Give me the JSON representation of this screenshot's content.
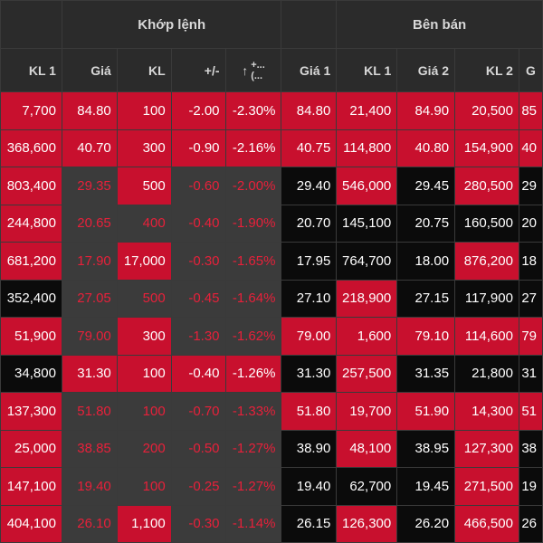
{
  "header": {
    "group_match": "Khớp lệnh",
    "group_sell": "Bên bán",
    "col_kl1_left": "KL 1",
    "col_price": "Giá",
    "col_vol": "KL",
    "col_change": "+/-",
    "col_pct_arrow": "↑",
    "col_pct_top": "+...",
    "col_pct_bottom": "(...",
    "col_sell_price1": "Giá 1",
    "col_sell_vol1": "KL 1",
    "col_sell_price2": "Giá 2",
    "col_sell_vol2": "KL 2",
    "col_partial": "G"
  },
  "colors": {
    "red_bg": "#c8102e",
    "dark_bg": "#3b3b3b",
    "black_bg": "#0b0b0b",
    "red_text": "#e8203a",
    "white_text": "#ffffff"
  },
  "rows": [
    {
      "kl1": "7,700",
      "price": "84.80",
      "vol": "100",
      "change": "-2.00",
      "pct": "-2.30%",
      "sp1": "84.80",
      "sv1": "21,400",
      "sp2": "84.90",
      "sv2": "20,500",
      "sp3": "85"
    },
    {
      "kl1": "368,600",
      "price": "40.70",
      "vol": "300",
      "change": "-0.90",
      "pct": "-2.16%",
      "sp1": "40.75",
      "sv1": "114,800",
      "sp2": "40.80",
      "sv2": "154,900",
      "sp3": "40"
    },
    {
      "kl1": "803,400",
      "price": "29.35",
      "vol": "500",
      "change": "-0.60",
      "pct": "-2.00%",
      "sp1": "29.40",
      "sv1": "546,000",
      "sp2": "29.45",
      "sv2": "280,500",
      "sp3": "29"
    },
    {
      "kl1": "244,800",
      "price": "20.65",
      "vol": "400",
      "change": "-0.40",
      "pct": "-1.90%",
      "sp1": "20.70",
      "sv1": "145,100",
      "sp2": "20.75",
      "sv2": "160,500",
      "sp3": "20"
    },
    {
      "kl1": "681,200",
      "price": "17.90",
      "vol": "17,000",
      "change": "-0.30",
      "pct": "-1.65%",
      "sp1": "17.95",
      "sv1": "764,700",
      "sp2": "18.00",
      "sv2": "876,200",
      "sp3": "18"
    },
    {
      "kl1": "352,400",
      "price": "27.05",
      "vol": "500",
      "change": "-0.45",
      "pct": "-1.64%",
      "sp1": "27.10",
      "sv1": "218,900",
      "sp2": "27.15",
      "sv2": "117,900",
      "sp3": "27"
    },
    {
      "kl1": "51,900",
      "price": "79.00",
      "vol": "300",
      "change": "-1.30",
      "pct": "-1.62%",
      "sp1": "79.00",
      "sv1": "1,600",
      "sp2": "79.10",
      "sv2": "114,600",
      "sp3": "79"
    },
    {
      "kl1": "34,800",
      "price": "31.30",
      "vol": "100",
      "change": "-0.40",
      "pct": "-1.26%",
      "sp1": "31.30",
      "sv1": "257,500",
      "sp2": "31.35",
      "sv2": "21,800",
      "sp3": "31"
    },
    {
      "kl1": "137,300",
      "price": "51.80",
      "vol": "100",
      "change": "-0.70",
      "pct": "-1.33%",
      "sp1": "51.80",
      "sv1": "19,700",
      "sp2": "51.90",
      "sv2": "14,300",
      "sp3": "51"
    },
    {
      "kl1": "25,000",
      "price": "38.85",
      "vol": "200",
      "change": "-0.50",
      "pct": "-1.27%",
      "sp1": "38.90",
      "sv1": "48,100",
      "sp2": "38.95",
      "sv2": "127,300",
      "sp3": "38"
    },
    {
      "kl1": "147,100",
      "price": "19.40",
      "vol": "100",
      "change": "-0.25",
      "pct": "-1.27%",
      "sp1": "19.40",
      "sv1": "62,700",
      "sp2": "19.45",
      "sv2": "271,500",
      "sp3": "19"
    },
    {
      "kl1": "404,100",
      "price": "26.10",
      "vol": "1,100",
      "change": "-0.30",
      "pct": "-1.14%",
      "sp1": "26.15",
      "sv1": "126,300",
      "sp2": "26.20",
      "sv2": "466,500",
      "sp3": "26"
    }
  ]
}
